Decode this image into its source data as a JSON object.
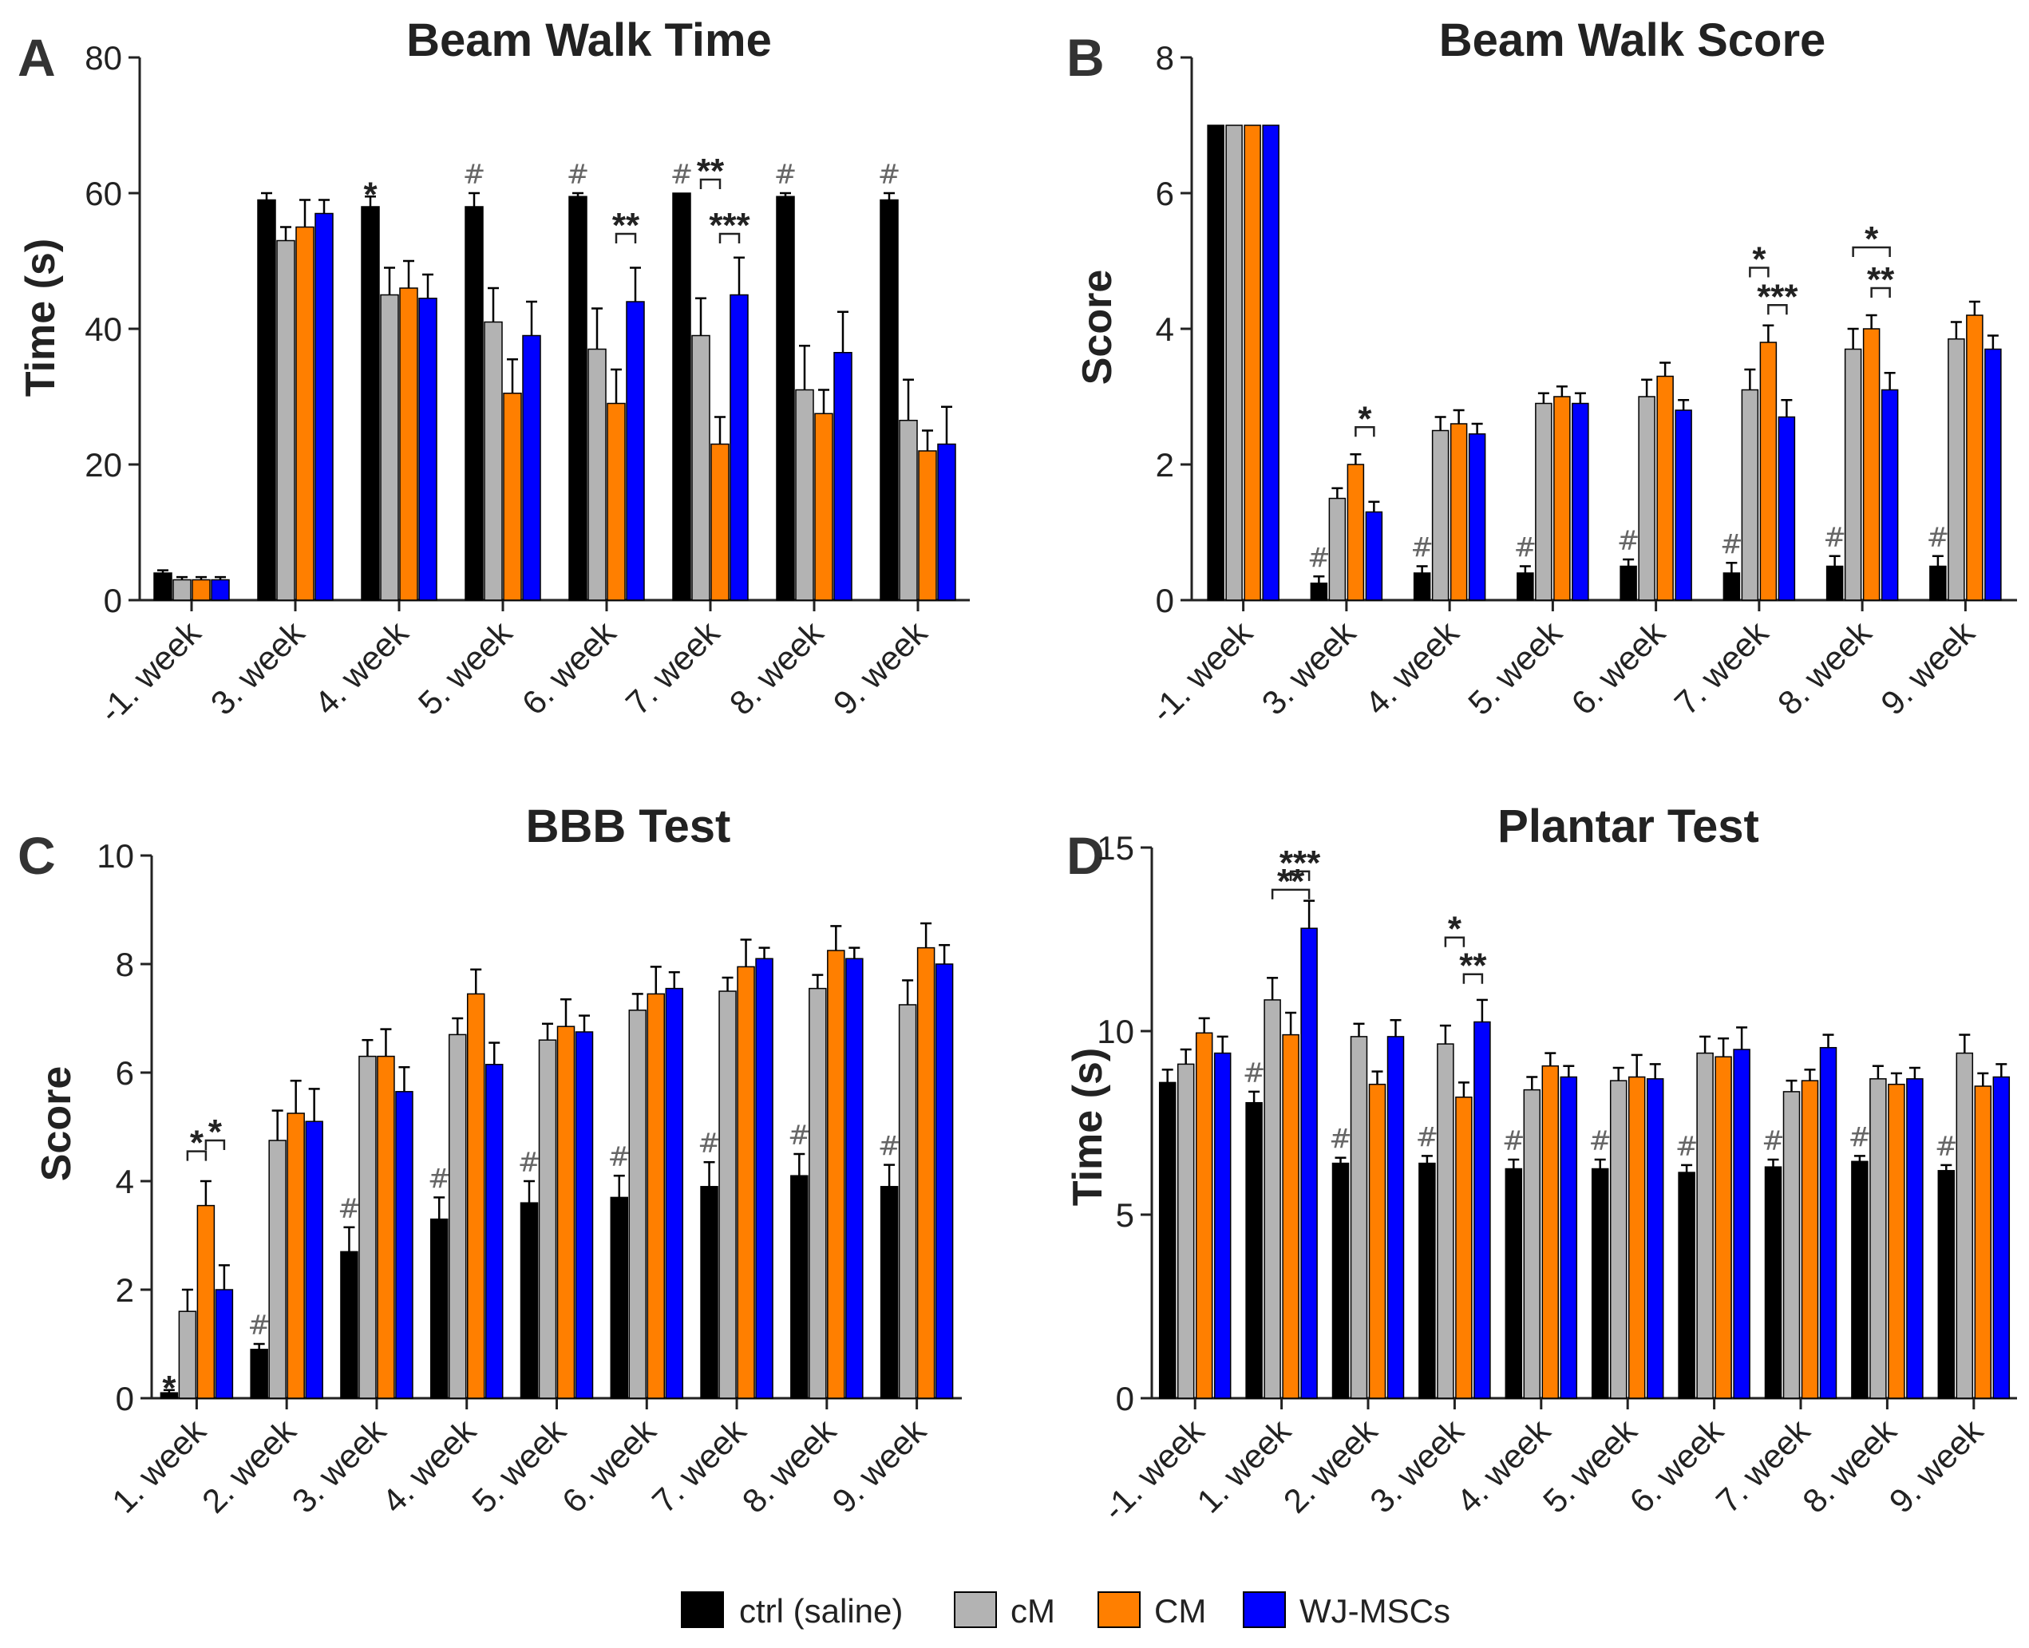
{
  "colors": {
    "ctrl": "#000000",
    "cM": "#b3b3b3",
    "CM": "#ff7f00",
    "WJ": "#0000ff",
    "axis": "#222222",
    "hash": "#666666"
  },
  "legend": [
    {
      "name": "ctrl (saline)",
      "color": "#000000"
    },
    {
      "name": "cM",
      "color": "#b3b3b3"
    },
    {
      "name": "CM",
      "color": "#ff7f00"
    },
    {
      "name": "WJ-MSCs",
      "color": "#0000ff"
    }
  ],
  "chart_data": [
    {
      "panel": "A",
      "type": "bar",
      "title": "Beam Walk Time",
      "ylabel": "Time (s)",
      "xlabel": "",
      "ylim": [
        0,
        80
      ],
      "yticks": [
        0,
        20,
        40,
        60,
        80
      ],
      "categories": [
        "-1. week",
        "3. week",
        "4. week",
        "5. week",
        "6. week",
        "7. week",
        "8. week",
        "9. week"
      ],
      "series": [
        {
          "name": "ctrl (saline)",
          "values": [
            4,
            59,
            58,
            58,
            59.5,
            60,
            59.5,
            59
          ],
          "errors": [
            0.4,
            1,
            1.5,
            2,
            0.5,
            0,
            0.5,
            1
          ]
        },
        {
          "name": "cM",
          "values": [
            3,
            53,
            45,
            41,
            37,
            39,
            31,
            26.5
          ],
          "errors": [
            0.4,
            2,
            4,
            5,
            6,
            5.5,
            6.5,
            6
          ]
        },
        {
          "name": "CM",
          "values": [
            3,
            55,
            46,
            30.5,
            29,
            23,
            27.5,
            22
          ],
          "errors": [
            0.4,
            4,
            4,
            5,
            5,
            4,
            3.5,
            3
          ]
        },
        {
          "name": "WJ-MSCs",
          "values": [
            3,
            57,
            44.5,
            39,
            44,
            45,
            36.5,
            23
          ],
          "errors": [
            0.4,
            2,
            3.5,
            5,
            5,
            5.5,
            6,
            5.5
          ]
        }
      ],
      "marks": {
        "hash_ctrl": [
          "",
          "",
          "",
          "#",
          "#",
          "#",
          "#",
          "#"
        ],
        "star_ctrl": [
          "",
          "",
          "*",
          "",
          "",
          "",
          "",
          ""
        ]
      },
      "brackets": [
        {
          "cat": 4,
          "from": 2,
          "to": 3,
          "y": 54,
          "label": "**"
        },
        {
          "cat": 5,
          "from": 1,
          "to": 2,
          "y": 62,
          "label": "**"
        },
        {
          "cat": 5,
          "from": 2,
          "to": 3,
          "y": 54,
          "label": "***"
        }
      ]
    },
    {
      "panel": "B",
      "type": "bar",
      "title": "Beam Walk Score",
      "ylabel": "Score",
      "xlabel": "",
      "ylim": [
        0,
        8
      ],
      "yticks": [
        0,
        2,
        4,
        6,
        8
      ],
      "categories": [
        "-1. week",
        "3. week",
        "4. week",
        "5. week",
        "6. week",
        "7. week",
        "8. week",
        "9. week"
      ],
      "series": [
        {
          "name": "ctrl (saline)",
          "values": [
            7,
            0.25,
            0.4,
            0.4,
            0.5,
            0.4,
            0.5,
            0.5
          ],
          "errors": [
            0,
            0.1,
            0.1,
            0.1,
            0.1,
            0.15,
            0.15,
            0.15
          ]
        },
        {
          "name": "cM",
          "values": [
            7,
            1.5,
            2.5,
            2.9,
            3,
            3.1,
            3.7,
            3.85
          ],
          "errors": [
            0,
            0.15,
            0.2,
            0.15,
            0.25,
            0.3,
            0.3,
            0.25
          ]
        },
        {
          "name": "CM",
          "values": [
            7,
            2,
            2.6,
            3,
            3.3,
            3.8,
            4,
            4.2
          ],
          "errors": [
            0,
            0.15,
            0.2,
            0.15,
            0.2,
            0.25,
            0.2,
            0.2
          ]
        },
        {
          "name": "WJ-MSCs",
          "values": [
            7,
            1.3,
            2.45,
            2.9,
            2.8,
            2.7,
            3.1,
            3.7
          ],
          "errors": [
            0,
            0.15,
            0.15,
            0.15,
            0.15,
            0.25,
            0.25,
            0.2
          ]
        }
      ],
      "marks": {
        "hash_ctrl": [
          "",
          "#",
          "#",
          "#",
          "#",
          "#",
          "#",
          "#"
        ],
        "star_ctrl": [
          "",
          "",
          "",
          "",
          "",
          "",
          "",
          ""
        ]
      },
      "brackets": [
        {
          "cat": 1,
          "from": 2,
          "to": 3,
          "y": 2.55,
          "label": "*"
        },
        {
          "cat": 5,
          "from": 1,
          "to": 2,
          "y": 4.9,
          "label": "*"
        },
        {
          "cat": 5,
          "from": 2,
          "to": 3,
          "y": 4.35,
          "label": "***"
        },
        {
          "cat": 6,
          "from": 1,
          "to": 3,
          "y": 5.2,
          "label": "*"
        },
        {
          "cat": 6,
          "from": 2,
          "to": 3,
          "y": 4.6,
          "label": "**"
        }
      ]
    },
    {
      "panel": "C",
      "type": "bar",
      "title": "BBB Test",
      "ylabel": "Score",
      "xlabel": "",
      "ylim": [
        0,
        10
      ],
      "yticks": [
        0,
        2,
        4,
        6,
        8,
        10
      ],
      "categories": [
        "1. week",
        "2. week",
        "3. week",
        "4. week",
        "5. week",
        "6. week",
        "7. week",
        "8. week",
        "9. week"
      ],
      "series": [
        {
          "name": "ctrl (saline)",
          "values": [
            0.1,
            0.9,
            2.7,
            3.3,
            3.6,
            3.7,
            3.9,
            4.1,
            3.9
          ],
          "errors": [
            0.05,
            0.1,
            0.45,
            0.4,
            0.4,
            0.4,
            0.45,
            0.4,
            0.4
          ]
        },
        {
          "name": "cM",
          "values": [
            1.6,
            4.75,
            6.3,
            6.7,
            6.6,
            7.15,
            7.5,
            7.55,
            7.25
          ],
          "errors": [
            0.4,
            0.55,
            0.3,
            0.3,
            0.3,
            0.3,
            0.25,
            0.25,
            0.45
          ]
        },
        {
          "name": "CM",
          "values": [
            3.55,
            5.25,
            6.3,
            7.45,
            6.85,
            7.45,
            7.95,
            8.25,
            8.3
          ],
          "errors": [
            0.45,
            0.6,
            0.5,
            0.45,
            0.5,
            0.5,
            0.5,
            0.45,
            0.45
          ]
        },
        {
          "name": "WJ-MSCs",
          "values": [
            2,
            5.1,
            5.65,
            6.15,
            6.75,
            7.55,
            8.1,
            8.1,
            8
          ],
          "errors": [
            0.45,
            0.6,
            0.45,
            0.4,
            0.3,
            0.3,
            0.2,
            0.2,
            0.35
          ]
        }
      ],
      "marks": {
        "hash_ctrl": [
          "",
          "#",
          "#",
          "#",
          "#",
          "#",
          "#",
          "#",
          "#"
        ],
        "star_ctrl": [
          "*",
          "",
          "",
          "",
          "",
          "",
          "",
          "",
          ""
        ]
      },
      "brackets": [
        {
          "cat": 0,
          "from": 1,
          "to": 2,
          "y": 4.55,
          "label": "*"
        },
        {
          "cat": 0,
          "from": 2,
          "to": 3,
          "y": 4.75,
          "label": "*"
        }
      ]
    },
    {
      "panel": "D",
      "type": "bar",
      "title": "Plantar Test",
      "ylabel": "Time (s)",
      "xlabel": "",
      "ylim": [
        0,
        15
      ],
      "yticks": [
        0,
        5,
        10,
        15
      ],
      "categories": [
        "-1. week",
        "1. week",
        "2. week",
        "3. week",
        "4. week",
        "5. week",
        "6. week",
        "7. week",
        "8. week",
        "9. week"
      ],
      "series": [
        {
          "name": "ctrl (saline)",
          "values": [
            8.6,
            8.05,
            6.4,
            6.4,
            6.25,
            6.25,
            6.15,
            6.3,
            6.45,
            6.2
          ],
          "errors": [
            0.35,
            0.3,
            0.15,
            0.2,
            0.25,
            0.25,
            0.2,
            0.2,
            0.15,
            0.15
          ]
        },
        {
          "name": "cM",
          "values": [
            9.1,
            10.85,
            9.85,
            9.65,
            8.4,
            8.65,
            9.4,
            8.35,
            8.7,
            9.4
          ],
          "errors": [
            0.4,
            0.6,
            0.35,
            0.5,
            0.35,
            0.35,
            0.45,
            0.3,
            0.35,
            0.5
          ]
        },
        {
          "name": "CM",
          "values": [
            9.95,
            9.9,
            8.55,
            8.2,
            9.05,
            8.75,
            9.3,
            8.65,
            8.55,
            8.5
          ],
          "errors": [
            0.4,
            0.6,
            0.35,
            0.4,
            0.35,
            0.6,
            0.5,
            0.3,
            0.3,
            0.35
          ]
        },
        {
          "name": "WJ-MSCs",
          "values": [
            9.4,
            12.8,
            9.85,
            10.25,
            8.75,
            8.7,
            9.5,
            9.55,
            8.7,
            8.75
          ],
          "errors": [
            0.45,
            0.75,
            0.45,
            0.6,
            0.3,
            0.4,
            0.6,
            0.35,
            0.3,
            0.35
          ]
        }
      ],
      "marks": {
        "hash_ctrl": [
          "",
          "#",
          "#",
          "#",
          "#",
          "#",
          "#",
          "#",
          "#",
          "#"
        ],
        "star_ctrl": [
          "",
          "",
          "",
          "",
          "",
          "",
          "",
          "",
          "",
          ""
        ]
      },
      "brackets": [
        {
          "cat": 1,
          "from": 1,
          "to": 3,
          "y": 13.85,
          "label": "**"
        },
        {
          "cat": 1,
          "from": 2,
          "to": 3,
          "y": 14.35,
          "label": "***"
        },
        {
          "cat": 3,
          "from": 1,
          "to": 2,
          "y": 12.55,
          "label": "*"
        },
        {
          "cat": 3,
          "from": 2,
          "to": 3,
          "y": 11.55,
          "label": "**"
        }
      ]
    }
  ]
}
